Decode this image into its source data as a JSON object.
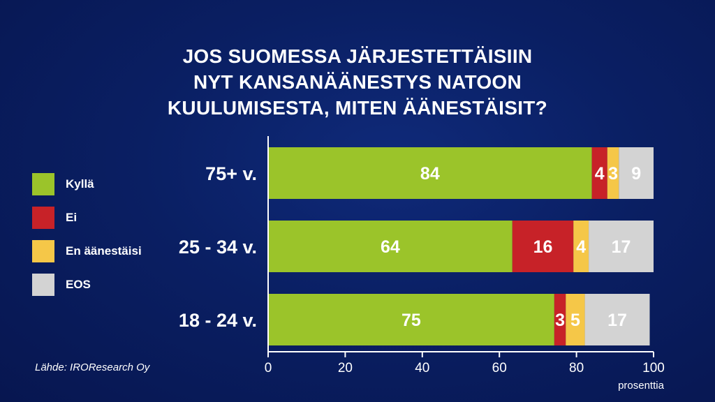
{
  "chart_data": {
    "type": "bar",
    "orientation": "horizontal",
    "stacked": true,
    "title_lines": [
      "JOS SUOMESSA JÄRJESTETTÄISIIN",
      "NYT KANSANÄÄNESTYS NATOON",
      "KUULUMISESTA, MITEN ÄÄNESTÄISIT?"
    ],
    "categories": [
      "75+ v.",
      "25 - 34 v.",
      "18 - 24 v."
    ],
    "series": [
      {
        "name": "Kyllä",
        "color": "#9bc42a",
        "values": [
          84,
          64,
          75
        ]
      },
      {
        "name": "Ei",
        "color": "#c72228",
        "values": [
          4,
          16,
          3
        ]
      },
      {
        "name": "En äänestäisi",
        "color": "#f5c748",
        "values": [
          3,
          4,
          5
        ]
      },
      {
        "name": "EOS",
        "color": "#d3d3d3",
        "values": [
          9,
          17,
          17
        ]
      }
    ],
    "bar_starts": [
      0,
      0,
      0
    ],
    "bar_ends": [
      100,
      100,
      99
    ],
    "xlabel": "prosenttia",
    "xlim": [
      0,
      100
    ],
    "xticks": [
      0,
      20,
      40,
      60,
      80,
      100
    ],
    "grid": false,
    "legend_position": "left",
    "source": "Lähde: IROResearch Oy"
  }
}
